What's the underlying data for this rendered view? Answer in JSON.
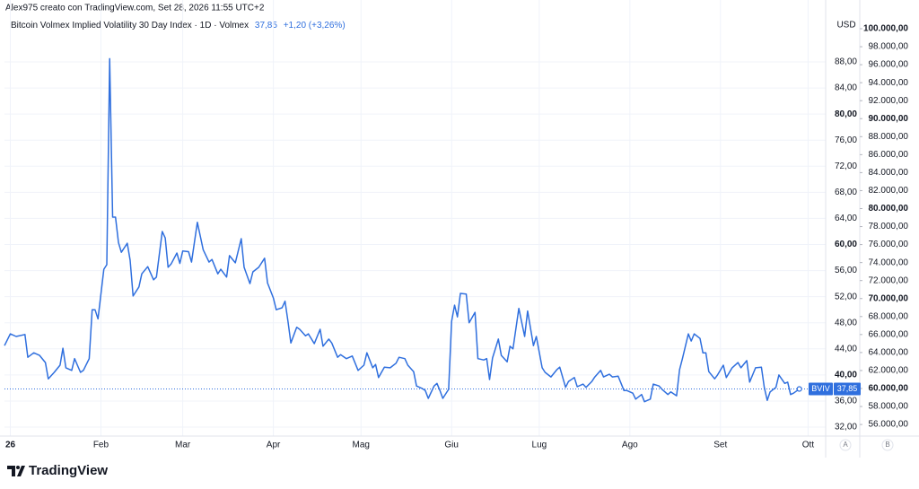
{
  "header": "Alex975 creato con TradingView.com, Set 28, 2026 11:55 UTC+2",
  "brand": "TradingView",
  "chart_data": {
    "type": "line",
    "title": "Bitcoin Volmex Implied Volatility 30 Day Index · 1D · Volmex",
    "last": {
      "value": 37.85,
      "label": "37,85"
    },
    "change": "+1,20 (+3,26%)",
    "symbol": "BVIV",
    "currency": "USD",
    "scale_buttons": [
      "A",
      "B"
    ],
    "grid": true,
    "xlim": [
      -2,
      279
    ],
    "xticks": [
      {
        "value": 0,
        "label": "26"
      },
      {
        "value": 31,
        "label": "Feb"
      },
      {
        "value": 59,
        "label": "Mar"
      },
      {
        "value": 90,
        "label": "Apr"
      },
      {
        "value": 120,
        "label": "Mag"
      },
      {
        "value": 151,
        "label": "Giu"
      },
      {
        "value": 181,
        "label": "Lug"
      },
      {
        "value": 212,
        "label": "Ago"
      },
      {
        "value": 243,
        "label": "Set"
      },
      {
        "value": 273,
        "label": "Ott"
      }
    ],
    "ylim": [
      31.04,
      94.74
    ],
    "yticks": [
      {
        "value": 32,
        "label": "32,00"
      },
      {
        "value": 36,
        "label": "36,00"
      },
      {
        "value": 40,
        "label": "40,00"
      },
      {
        "value": 44,
        "label": "44,00"
      },
      {
        "value": 48,
        "label": "48,00"
      },
      {
        "value": 52,
        "label": "52,00"
      },
      {
        "value": 56,
        "label": "56,00"
      },
      {
        "value": 60,
        "label": "60,00"
      },
      {
        "value": 64,
        "label": "64,00"
      },
      {
        "value": 68,
        "label": "68,00"
      },
      {
        "value": 72,
        "label": "72,00"
      },
      {
        "value": 76,
        "label": "76,00"
      },
      {
        "value": 80,
        "label": "80,00"
      },
      {
        "value": 84,
        "label": "84,00"
      },
      {
        "value": 88,
        "label": "88,00"
      }
    ],
    "y2lim": [
      55012,
      101197
    ],
    "y2ticks": [
      {
        "value": 56000,
        "label": "56.000,00"
      },
      {
        "value": 58000,
        "label": "58.000,00"
      },
      {
        "value": 60000,
        "label": "60.000,00"
      },
      {
        "value": 62000,
        "label": "62.000,00"
      },
      {
        "value": 64000,
        "label": "64.000,00"
      },
      {
        "value": 66000,
        "label": "66.000,00"
      },
      {
        "value": 68000,
        "label": "68.000,00"
      },
      {
        "value": 70000,
        "label": "70.000,00"
      },
      {
        "value": 72000,
        "label": "72.000,00"
      },
      {
        "value": 74000,
        "label": "74.000,00"
      },
      {
        "value": 76000,
        "label": "76.000,00"
      },
      {
        "value": 78000,
        "label": "78.000,00"
      },
      {
        "value": 80000,
        "label": "80.000,00"
      },
      {
        "value": 82000,
        "label": "82.000,00"
      },
      {
        "value": 84000,
        "label": "84.000,00"
      },
      {
        "value": 86000,
        "label": "86.000,00"
      },
      {
        "value": 88000,
        "label": "88.000,00"
      },
      {
        "value": 90000,
        "label": "90.000,00"
      },
      {
        "value": 92000,
        "label": "92.000,00"
      },
      {
        "value": 94000,
        "label": "94.000,00"
      },
      {
        "value": 96000,
        "label": "96.000,00"
      },
      {
        "value": 98000,
        "label": "98.000,00"
      },
      {
        "value": 100000,
        "label": "100.000,00"
      }
    ],
    "series": [
      {
        "name": "BVIV",
        "color": "#2f6fde",
        "x": [
          -2,
          0,
          2,
          5,
          6,
          8,
          10,
          12,
          13,
          15,
          17,
          18,
          19,
          21,
          22,
          24,
          25,
          27,
          28,
          29,
          30,
          32,
          33,
          34,
          35,
          36,
          37,
          38,
          40,
          41,
          42,
          44,
          45,
          47,
          49,
          50,
          52,
          53,
          54,
          55,
          57,
          58,
          59,
          61,
          62,
          64,
          66,
          68,
          69,
          71,
          72,
          74,
          75,
          77,
          79,
          80,
          82,
          83,
          85,
          87,
          88,
          90,
          91,
          93,
          94,
          95,
          96,
          98,
          99,
          101,
          102,
          104,
          106,
          107,
          109,
          110,
          112,
          113,
          115,
          117,
          119,
          121,
          122,
          124,
          125,
          126,
          128,
          130,
          132,
          133,
          135,
          136,
          138,
          139,
          141,
          142,
          143,
          145,
          146,
          147,
          148,
          150,
          151,
          152,
          153,
          154,
          156,
          157,
          159,
          160,
          162,
          163,
          164,
          165,
          167,
          168,
          170,
          171,
          172,
          174,
          176,
          177,
          179,
          180,
          182,
          183,
          185,
          187,
          188,
          190,
          191,
          193,
          194,
          196,
          197,
          199,
          200,
          202,
          203,
          205,
          206,
          208,
          210,
          211,
          213,
          214,
          216,
          217,
          219,
          220,
          222,
          223,
          225,
          226,
          228,
          229,
          230,
          232,
          233,
          234,
          236,
          237,
          238,
          239,
          241,
          242,
          244,
          245,
          247,
          249,
          250,
          252,
          253,
          255,
          257,
          258,
          259,
          260,
          262,
          263,
          265,
          266,
          267,
          268,
          270
        ],
        "values": [
          44.5,
          46.3,
          45.9,
          46.2,
          42.7,
          43.4,
          43.0,
          41.9,
          39.4,
          40.4,
          41.5,
          44.1,
          41.1,
          40.7,
          42.5,
          40.4,
          40.7,
          42.5,
          50.0,
          50.0,
          48.6,
          56.2,
          56.9,
          88.5,
          64.2,
          64.2,
          60.3,
          58.8,
          60.2,
          57.6,
          52.1,
          53.5,
          55.5,
          56.6,
          54.6,
          55.0,
          62.0,
          61.0,
          56.5,
          57.0,
          58.7,
          57.1,
          59.0,
          58.9,
          57.3,
          63.4,
          59.2,
          57.3,
          57.7,
          55.5,
          56.2,
          55.0,
          58.3,
          57.2,
          60.9,
          56.5,
          54.0,
          55.8,
          56.5,
          57.9,
          54.1,
          51.8,
          50.0,
          50.3,
          51.3,
          48.2,
          44.9,
          47.3,
          47.0,
          46.0,
          46.3,
          44.8,
          47.0,
          44.4,
          45.5,
          44.9,
          42.7,
          43.1,
          42.5,
          42.9,
          40.7,
          41.5,
          43.4,
          41.1,
          41.6,
          39.6,
          41.2,
          41.1,
          41.8,
          42.7,
          42.5,
          41.5,
          40.5,
          38.3,
          37.9,
          37.6,
          36.4,
          38.3,
          38.7,
          37.6,
          36.4,
          37.8,
          48.2,
          50.7,
          48.9,
          52.5,
          52.4,
          48.0,
          49.6,
          42.5,
          42.3,
          42.5,
          39.3,
          42.6,
          45.5,
          43.0,
          42.0,
          44.4,
          44.0,
          50.2,
          45.9,
          49.8,
          44.5,
          45.9,
          41.1,
          40.4,
          39.7,
          40.8,
          41.2,
          38.1,
          39.0,
          39.6,
          38.2,
          38.6,
          38.1,
          39.0,
          39.7,
          40.7,
          39.7,
          40.1,
          39.7,
          39.8,
          37.6,
          37.6,
          37.2,
          36.3,
          37.0,
          35.9,
          36.3,
          38.6,
          38.3,
          37.8,
          37.0,
          37.4,
          36.8,
          40.8,
          42.5,
          46.3,
          45.2,
          46.3,
          45.6,
          43.4,
          43.4,
          40.5,
          39.4,
          40.0,
          41.5,
          39.6,
          41.1,
          41.9,
          41.1,
          42.2,
          38.9,
          41.1,
          41.2,
          38.1,
          36.1,
          37.4,
          38.1,
          40.0,
          38.7,
          38.9,
          37.0,
          37.2,
          37.85
        ]
      }
    ]
  }
}
